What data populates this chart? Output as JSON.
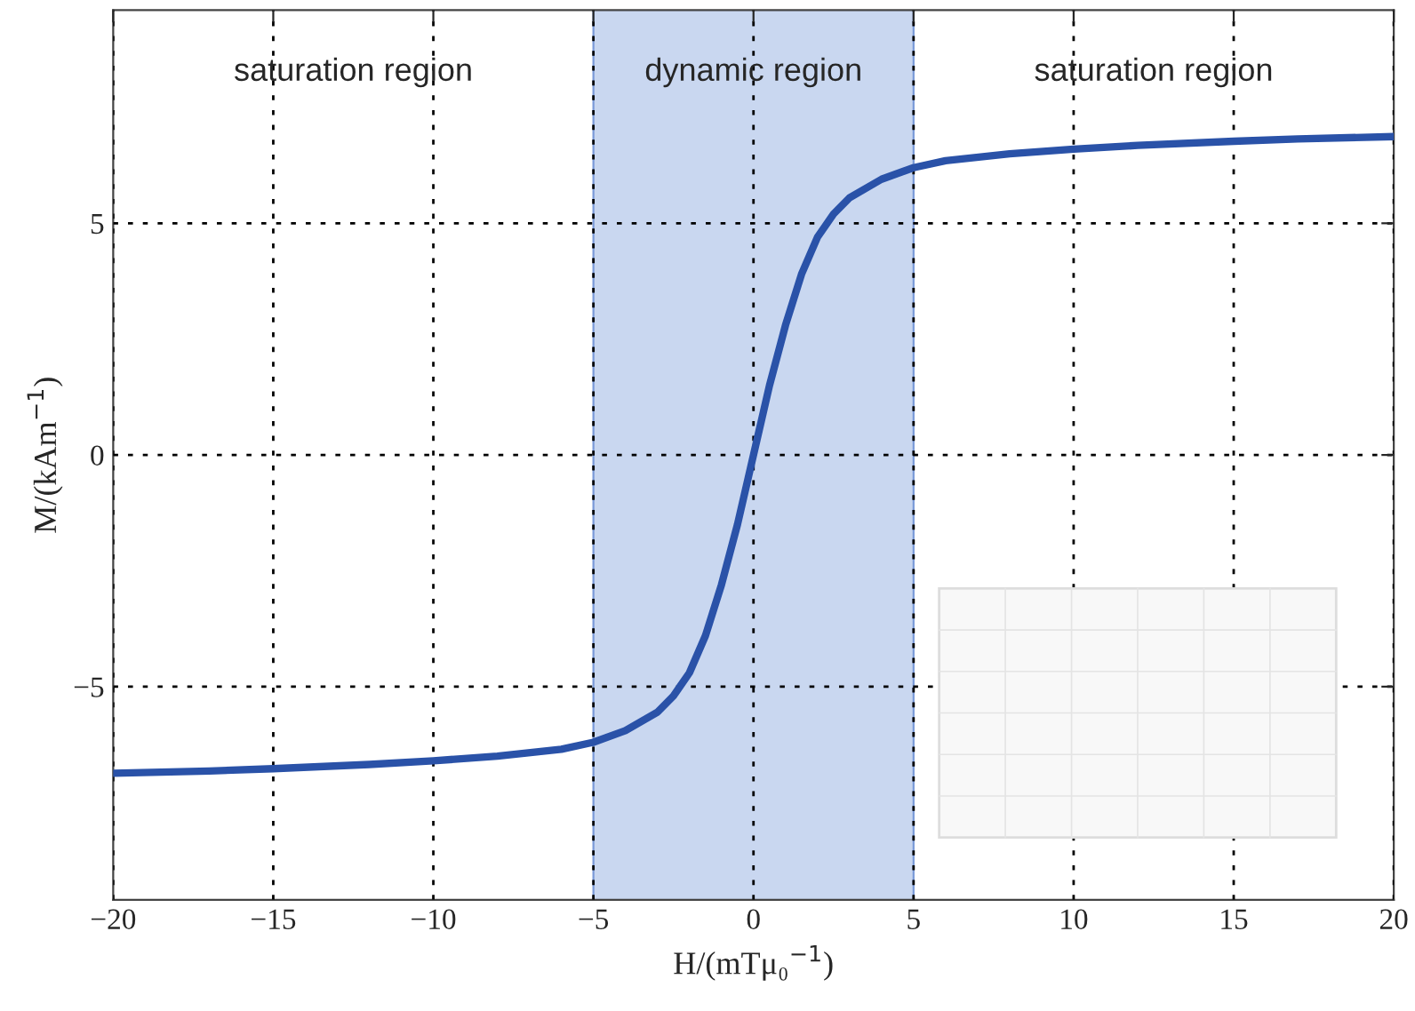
{
  "chart_data": {
    "type": "line",
    "xlabel": "H/(mTμ₀$^{−1}$)",
    "ylabel": "M/(kAm$^{−1}$)",
    "x": [
      -20,
      -17,
      -15,
      -12,
      -10,
      -8,
      -6,
      -5,
      -4,
      -3,
      -2.5,
      -2,
      -1.5,
      -1,
      -0.5,
      0,
      0.5,
      1,
      1.5,
      2,
      2.5,
      3,
      4,
      5,
      6,
      8,
      10,
      12,
      15,
      17,
      20
    ],
    "series": [
      {
        "color": "#2a52a8",
        "values": [
          -6.87,
          -6.82,
          -6.77,
          -6.68,
          -6.6,
          -6.5,
          -6.35,
          -6.2,
          -5.95,
          -5.55,
          -5.2,
          -4.7,
          -3.9,
          -2.8,
          -1.5,
          0,
          1.5,
          2.8,
          3.9,
          4.7,
          5.2,
          5.55,
          5.95,
          6.2,
          6.35,
          6.5,
          6.6,
          6.68,
          6.77,
          6.82,
          6.87
        ]
      }
    ],
    "xlim": [
      -20,
      20
    ],
    "ylim": [
      -9.6,
      9.6
    ],
    "xticks": [
      -20,
      -15,
      -10,
      -5,
      0,
      5,
      10,
      15,
      20
    ],
    "yticks": [
      -5,
      0,
      5
    ],
    "bands": [
      {
        "axis": "x",
        "from": -5,
        "to": 5,
        "label": "dynamic region",
        "color": "#c9d7f0"
      }
    ],
    "annotations": [
      "saturation region",
      "saturation region"
    ],
    "grid": true,
    "legend": false,
    "line_style": "solid"
  }
}
